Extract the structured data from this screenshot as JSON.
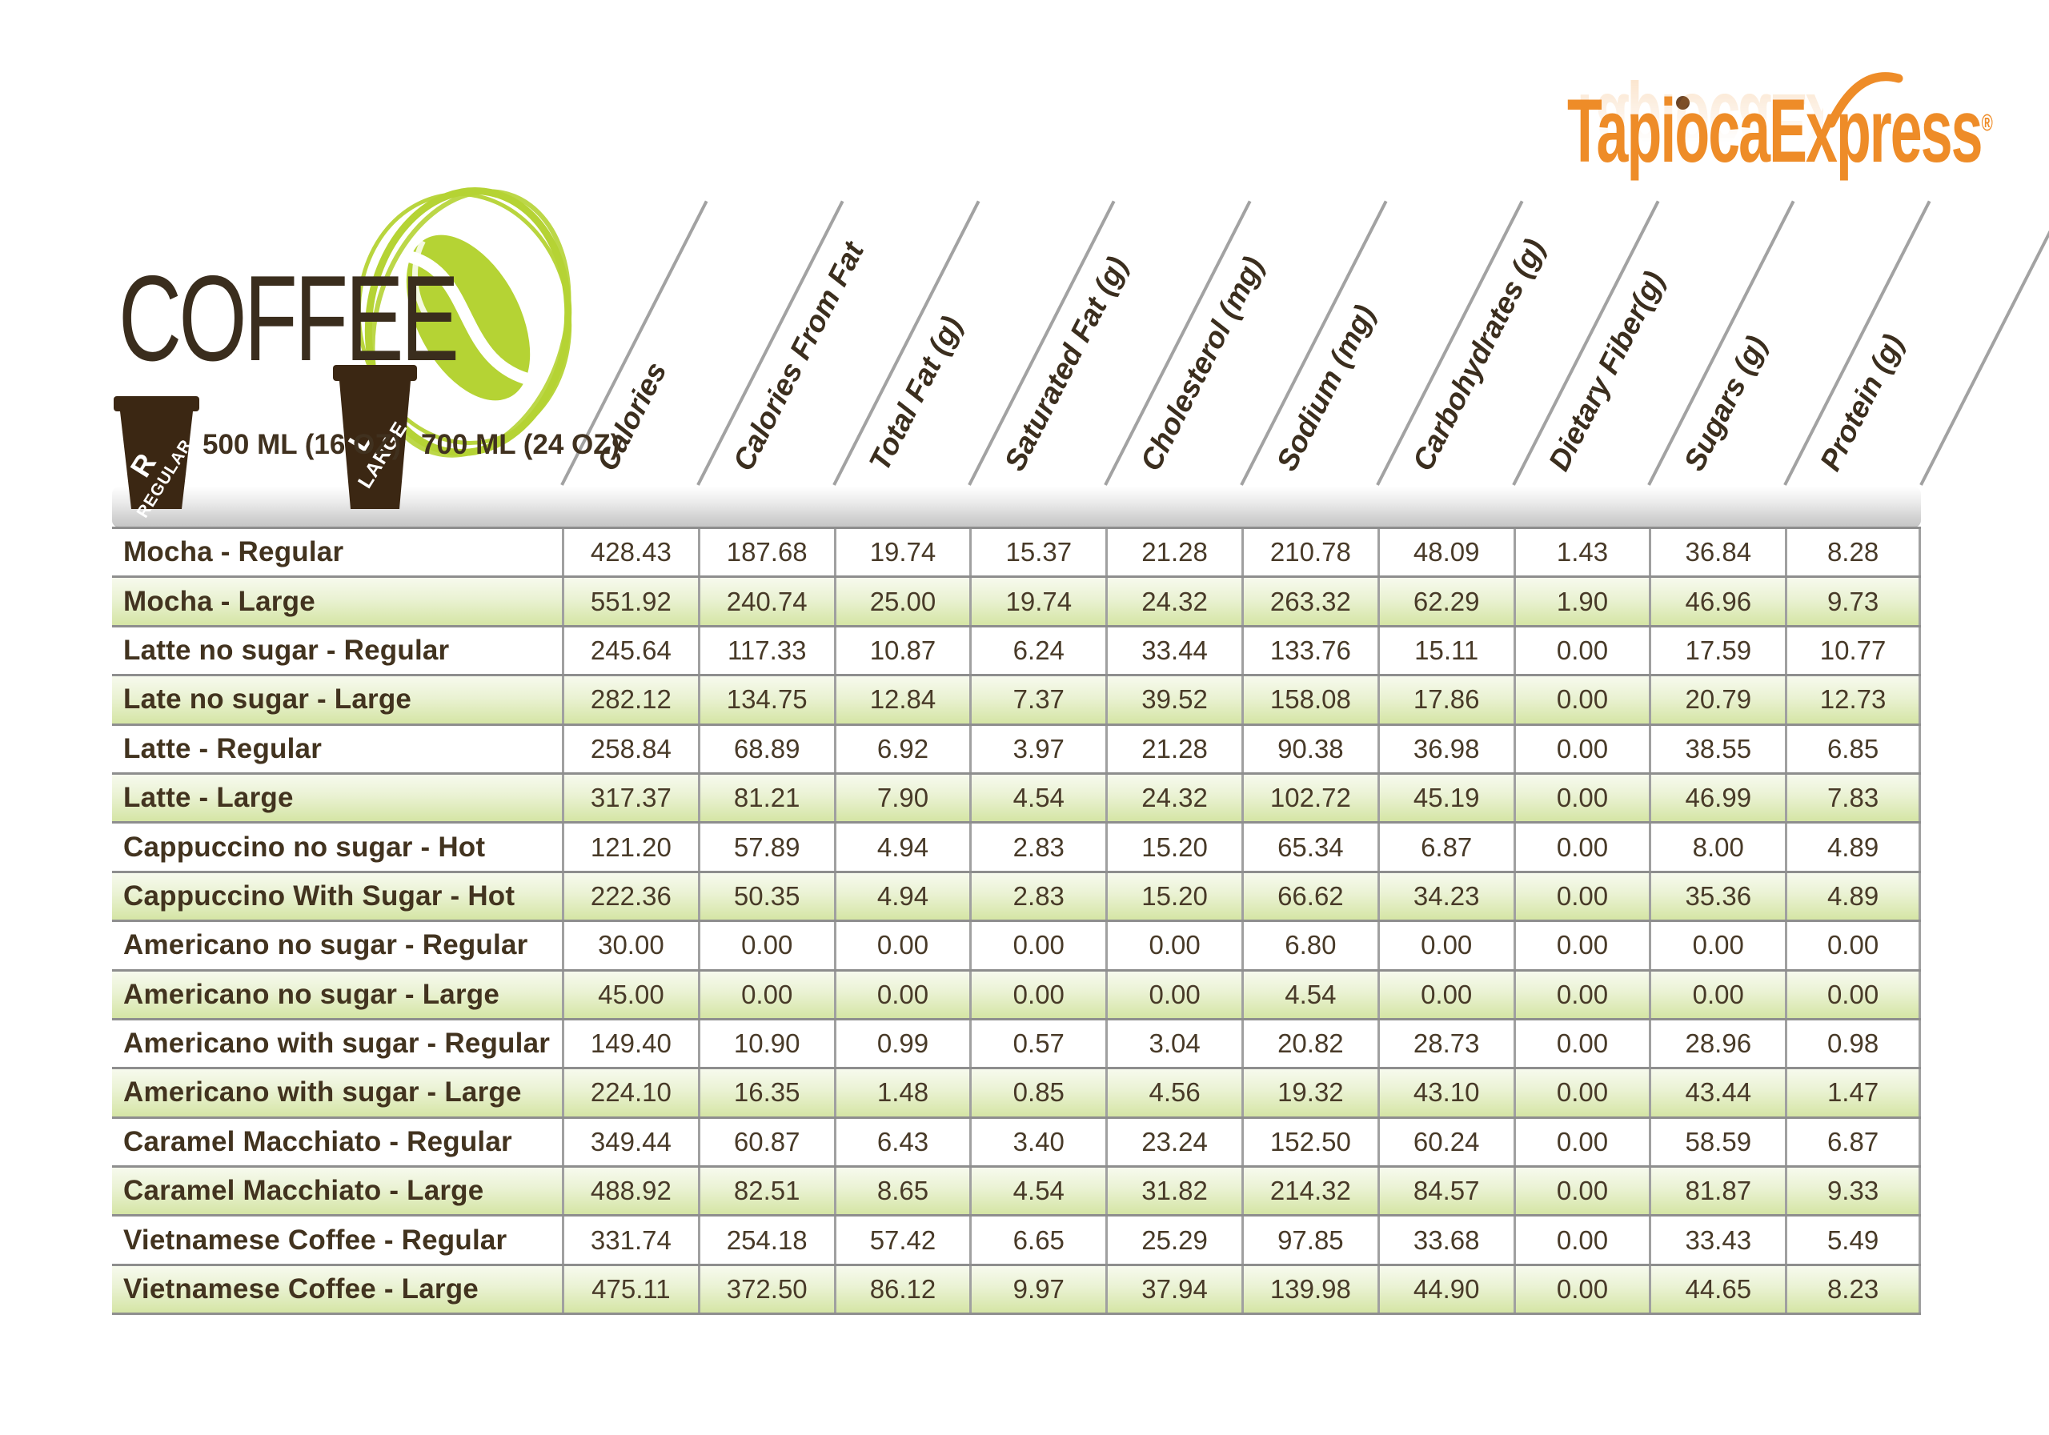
{
  "header": {
    "title": "COFFEE"
  },
  "brand": {
    "logo_text": "TapiocaExpress",
    "registered_mark": "®"
  },
  "cups": {
    "regular": {
      "letter": "R",
      "label": "REGULAR",
      "size_text": "500 ML (16 OZ)"
    },
    "large": {
      "letter": "L",
      "label": "LARGE",
      "size_text": "700 ML (24 OZ)"
    }
  },
  "table": {
    "columns": [
      "Calories",
      "Calories From Fat",
      "Total Fat (g)",
      "Saturated Fat (g)",
      "Cholesterol (mg)",
      "Sodium (mg)",
      "Carbohydrates (g)",
      "Dietary Fiber(g)",
      "Sugars (g)",
      "Protein (g)"
    ],
    "rows": [
      {
        "name": "Mocha - Regular",
        "values": [
          "428.43",
          "187.68",
          "19.74",
          "15.37",
          "21.28",
          "210.78",
          "48.09",
          "1.43",
          "36.84",
          "8.28"
        ]
      },
      {
        "name": "Mocha - Large",
        "values": [
          "551.92",
          "240.74",
          "25.00",
          "19.74",
          "24.32",
          "263.32",
          "62.29",
          "1.90",
          "46.96",
          "9.73"
        ]
      },
      {
        "name": "Latte no sugar - Regular",
        "values": [
          "245.64",
          "117.33",
          "10.87",
          "6.24",
          "33.44",
          "133.76",
          "15.11",
          "0.00",
          "17.59",
          "10.77"
        ]
      },
      {
        "name": "Late no sugar - Large",
        "values": [
          "282.12",
          "134.75",
          "12.84",
          "7.37",
          "39.52",
          "158.08",
          "17.86",
          "0.00",
          "20.79",
          "12.73"
        ]
      },
      {
        "name": "Latte - Regular",
        "values": [
          "258.84",
          "68.89",
          "6.92",
          "3.97",
          "21.28",
          "90.38",
          "36.98",
          "0.00",
          "38.55",
          "6.85"
        ]
      },
      {
        "name": "Latte - Large",
        "values": [
          "317.37",
          "81.21",
          "7.90",
          "4.54",
          "24.32",
          "102.72",
          "45.19",
          "0.00",
          "46.99",
          "7.83"
        ]
      },
      {
        "name": "Cappuccino no sugar - Hot",
        "values": [
          "121.20",
          "57.89",
          "4.94",
          "2.83",
          "15.20",
          "65.34",
          "6.87",
          "0.00",
          "8.00",
          "4.89"
        ]
      },
      {
        "name": "Cappuccino With Sugar - Hot",
        "values": [
          "222.36",
          "50.35",
          "4.94",
          "2.83",
          "15.20",
          "66.62",
          "34.23",
          "0.00",
          "35.36",
          "4.89"
        ]
      },
      {
        "name": "Americano no sugar - Regular",
        "values": [
          "30.00",
          "0.00",
          "0.00",
          "0.00",
          "0.00",
          "6.80",
          "0.00",
          "0.00",
          "0.00",
          "0.00"
        ]
      },
      {
        "name": "Americano no sugar - Large",
        "values": [
          "45.00",
          "0.00",
          "0.00",
          "0.00",
          "0.00",
          "4.54",
          "0.00",
          "0.00",
          "0.00",
          "0.00"
        ]
      },
      {
        "name": "Americano with sugar - Regular",
        "values": [
          "149.40",
          "10.90",
          "0.99",
          "0.57",
          "3.04",
          "20.82",
          "28.73",
          "0.00",
          "28.96",
          "0.98"
        ]
      },
      {
        "name": "Americano with sugar - Large",
        "values": [
          "224.10",
          "16.35",
          "1.48",
          "0.85",
          "4.56",
          "19.32",
          "43.10",
          "0.00",
          "43.44",
          "1.47"
        ]
      },
      {
        "name": "Caramel Macchiato - Regular",
        "values": [
          "349.44",
          "60.87",
          "6.43",
          "3.40",
          "23.24",
          "152.50",
          "60.24",
          "0.00",
          "58.59",
          "6.87"
        ]
      },
      {
        "name": "Caramel Macchiato - Large",
        "values": [
          "488.92",
          "82.51",
          "8.65",
          "4.54",
          "31.82",
          "214.32",
          "84.57",
          "0.00",
          "81.87",
          "9.33"
        ]
      },
      {
        "name": "Vietnamese Coffee - Regular",
        "values": [
          "331.74",
          "254.18",
          "57.42",
          "6.65",
          "25.29",
          "97.85",
          "33.68",
          "0.00",
          "33.43",
          "5.49"
        ]
      },
      {
        "name": "Vietnamese Coffee - Large",
        "values": [
          "475.11",
          "372.50",
          "86.12",
          "9.97",
          "37.94",
          "139.98",
          "44.90",
          "0.00",
          "44.65",
          "8.23"
        ]
      }
    ]
  },
  "colors": {
    "accent_green": "#b5d334",
    "brand_orange": "#ee8c28",
    "text_brown": "#463823",
    "cup_brown": "#3b2713",
    "row_green": "#d5e5a5"
  }
}
